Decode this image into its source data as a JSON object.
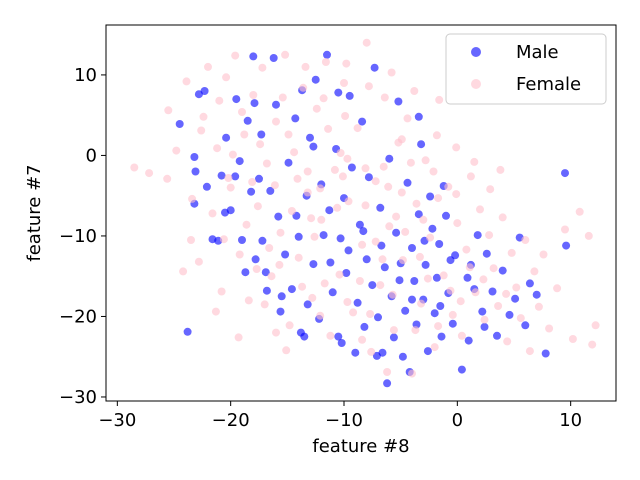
{
  "chart_data": {
    "type": "scatter",
    "title": "",
    "xlabel": "feature #8",
    "ylabel": "feature #7",
    "xlim": [
      -31,
      14
    ],
    "ylim": [
      -30.5,
      16.2
    ],
    "xticks": [
      -30,
      -20,
      -10,
      0,
      10
    ],
    "yticks": [
      -30,
      -20,
      -10,
      0,
      10
    ],
    "grid": false,
    "legend_position": "top-right",
    "series": [
      {
        "name": "Male",
        "color": "#0000ff",
        "alpha": 0.6,
        "points": [
          [
            -23.8,
            -21.9
          ],
          [
            -24.5,
            3.9
          ],
          [
            -23.2,
            -0.2
          ],
          [
            -23.1,
            -2.0
          ],
          [
            -23.2,
            -6.0
          ],
          [
            -22.8,
            7.6
          ],
          [
            -22.3,
            8.0
          ],
          [
            -22.1,
            -3.9
          ],
          [
            -21.6,
            -10.4
          ],
          [
            -21.1,
            -10.6
          ],
          [
            -20.8,
            -2.5
          ],
          [
            -20.4,
            2.2
          ],
          [
            -20.0,
            -6.8
          ],
          [
            -19.5,
            7.0
          ],
          [
            -19.2,
            -0.7
          ],
          [
            -19.0,
            -10.5
          ],
          [
            -18.7,
            -14.5
          ],
          [
            -18.5,
            4.3
          ],
          [
            -18.2,
            -4.5
          ],
          [
            -18.0,
            12.3
          ],
          [
            -17.8,
            -12.9
          ],
          [
            -17.5,
            -2.9
          ],
          [
            -17.3,
            2.6
          ],
          [
            -17.2,
            -10.6
          ],
          [
            -16.9,
            -14.5
          ],
          [
            -16.5,
            -4.4
          ],
          [
            -16.2,
            12.1
          ],
          [
            -16.0,
            6.3
          ],
          [
            -15.8,
            -7.6
          ],
          [
            -15.5,
            -17.5
          ],
          [
            -15.2,
            -12.3
          ],
          [
            -14.9,
            -0.9
          ],
          [
            -14.6,
            -16.6
          ],
          [
            -14.3,
            4.6
          ],
          [
            -14.0,
            -10.1
          ],
          [
            -13.8,
            -22.0
          ],
          [
            -13.5,
            -22.5
          ],
          [
            -13.3,
            -5.0
          ],
          [
            -13.2,
            -18.5
          ],
          [
            -13.0,
            2.2
          ],
          [
            -12.7,
            -13.5
          ],
          [
            -12.5,
            9.4
          ],
          [
            -12.2,
            -20.3
          ],
          [
            -12.0,
            -3.6
          ],
          [
            -11.8,
            -9.9
          ],
          [
            -11.5,
            12.5
          ],
          [
            -11.3,
            -6.8
          ],
          [
            -11.0,
            -17.0
          ],
          [
            -10.7,
            0.8
          ],
          [
            -10.5,
            -22.5
          ],
          [
            -10.3,
            -10.3
          ],
          [
            -10.2,
            -23.3
          ],
          [
            -10.0,
            -5.3
          ],
          [
            -9.8,
            -14.6
          ],
          [
            -9.5,
            7.4
          ],
          [
            -9.3,
            -1.5
          ],
          [
            -9.0,
            -24.5
          ],
          [
            -8.8,
            -18.3
          ],
          [
            -8.6,
            -8.6
          ],
          [
            -8.4,
            4.2
          ],
          [
            -8.2,
            -21.3
          ],
          [
            -8.0,
            -12.9
          ],
          [
            -7.8,
            -2.7
          ],
          [
            -7.5,
            -16.1
          ],
          [
            -7.3,
            10.9
          ],
          [
            -7.1,
            -24.9
          ],
          [
            -7.0,
            -20.1
          ],
          [
            -6.8,
            -6.5
          ],
          [
            -6.6,
            -24.5
          ],
          [
            -6.4,
            -13.9
          ],
          [
            -6.2,
            -28.3
          ],
          [
            -6.0,
            -0.4
          ],
          [
            -5.8,
            -17.5
          ],
          [
            -5.6,
            -22.6
          ],
          [
            -5.4,
            -9.6
          ],
          [
            -5.2,
            6.7
          ],
          [
            -5.0,
            -13.4
          ],
          [
            -4.8,
            -25.0
          ],
          [
            -4.6,
            -19.3
          ],
          [
            -4.4,
            -3.4
          ],
          [
            -4.2,
            -26.9
          ],
          [
            -4.0,
            -11.5
          ],
          [
            -3.8,
            -15.6
          ],
          [
            -3.6,
            -21.0
          ],
          [
            -3.4,
            -7.3
          ],
          [
            -3.2,
            1.4
          ],
          [
            -3.0,
            -17.9
          ],
          [
            -2.8,
            -13.6
          ],
          [
            -2.6,
            -24.3
          ],
          [
            -2.4,
            -5.1
          ],
          [
            -2.2,
            -9.1
          ],
          [
            -2.0,
            -19.6
          ],
          [
            -1.8,
            -15.2
          ],
          [
            -1.6,
            -11.0
          ],
          [
            -1.4,
            -22.5
          ],
          [
            -1.2,
            -3.8
          ],
          [
            -1.0,
            -7.5
          ],
          [
            -0.8,
            -17.1
          ],
          [
            -0.6,
            -13.0
          ],
          [
            -0.4,
            -20.9
          ],
          [
            0.4,
            -26.6
          ],
          [
            1.0,
            -23.0
          ],
          [
            1.2,
            -13.6
          ],
          [
            1.5,
            -16.6
          ],
          [
            1.8,
            -9.9
          ],
          [
            2.2,
            -19.4
          ],
          [
            2.6,
            -12.2
          ],
          [
            3.1,
            -16.9
          ],
          [
            3.5,
            -22.4
          ],
          [
            4.0,
            -14.3
          ],
          [
            4.6,
            -19.8
          ],
          [
            5.1,
            -17.8
          ],
          [
            5.5,
            -10.2
          ],
          [
            6.0,
            -21.1
          ],
          [
            6.4,
            -15.9
          ],
          [
            7.0,
            -17.3
          ],
          [
            7.8,
            -24.6
          ],
          [
            9.5,
            -2.2
          ],
          [
            9.6,
            -11.2
          ],
          [
            -10.5,
            7.8
          ],
          [
            -13.7,
            8.1
          ],
          [
            -14.2,
            -7.5
          ],
          [
            -17.9,
            6.5
          ],
          [
            -19.6,
            -2.6
          ],
          [
            -20.5,
            -7.1
          ],
          [
            -12.7,
            1.1
          ],
          [
            -11.2,
            -13.3
          ],
          [
            -9.6,
            -11.8
          ],
          [
            -8.3,
            -9.4
          ],
          [
            -6.7,
            -11.2
          ],
          [
            -5.1,
            -15.5
          ],
          [
            -4.0,
            -17.9
          ],
          [
            -2.9,
            -10.6
          ],
          [
            -1.5,
            -18.7
          ],
          [
            -0.2,
            -12.4
          ],
          [
            0.9,
            -15.2
          ],
          [
            2.4,
            -21.3
          ],
          [
            -15.6,
            -19.4
          ],
          [
            -16.8,
            -16.8
          ],
          [
            -3.4,
            4.8
          ]
        ]
      },
      {
        "name": "Female",
        "color": "#ffc0cb",
        "alpha": 0.6,
        "points": [
          [
            -28.5,
            -1.5
          ],
          [
            -27.2,
            -2.2
          ],
          [
            -25.6,
            -2.9
          ],
          [
            -25.5,
            5.6
          ],
          [
            -24.8,
            0.6
          ],
          [
            -24.2,
            -14.4
          ],
          [
            -23.9,
            9.2
          ],
          [
            -23.5,
            -10.5
          ],
          [
            -22.8,
            -13.2
          ],
          [
            -22.4,
            4.8
          ],
          [
            -22.0,
            11.0
          ],
          [
            -21.6,
            -7.2
          ],
          [
            -21.2,
            0.9
          ],
          [
            -20.8,
            -16.9
          ],
          [
            -20.4,
            9.7
          ],
          [
            -20.0,
            -4.0
          ],
          [
            -19.6,
            12.4
          ],
          [
            -19.2,
            -12.3
          ],
          [
            -18.8,
            2.6
          ],
          [
            -18.4,
            -18.0
          ],
          [
            -18.0,
            7.5
          ],
          [
            -17.6,
            -6.3
          ],
          [
            -17.2,
            10.9
          ],
          [
            -16.8,
            -1.0
          ],
          [
            -16.4,
            -15.0
          ],
          [
            -16.0,
            4.2
          ],
          [
            -15.6,
            -9.6
          ],
          [
            -15.2,
            12.5
          ],
          [
            -14.8,
            -21.1
          ],
          [
            -14.4,
            0.4
          ],
          [
            -14.0,
            -12.7
          ],
          [
            -13.6,
            8.4
          ],
          [
            -13.2,
            -4.6
          ],
          [
            -12.8,
            -17.7
          ],
          [
            -12.4,
            5.8
          ],
          [
            -12.0,
            -8.0
          ],
          [
            -11.6,
            11.6
          ],
          [
            -11.2,
            -22.4
          ],
          [
            -10.8,
            -1.8
          ],
          [
            -10.4,
            -14.8
          ],
          [
            -10.0,
            9.0
          ],
          [
            -9.6,
            -5.7
          ],
          [
            -9.2,
            -19.5
          ],
          [
            -8.8,
            3.4
          ],
          [
            -8.4,
            -11.1
          ],
          [
            -8.0,
            14.0
          ],
          [
            -7.6,
            -24.4
          ],
          [
            -7.2,
            -3.2
          ],
          [
            -6.8,
            -16.1
          ],
          [
            -6.4,
            7.2
          ],
          [
            -6.0,
            -8.8
          ],
          [
            -5.6,
            -21.7
          ],
          [
            -5.2,
            1.6
          ],
          [
            -4.8,
            -13.0
          ],
          [
            -4.4,
            4.6
          ],
          [
            -4.0,
            -27.1
          ],
          [
            -3.6,
            -6.0
          ],
          [
            -3.2,
            -18.4
          ],
          [
            -2.8,
            -0.6
          ],
          [
            -2.4,
            -10.2
          ],
          [
            -2.0,
            -23.8
          ],
          [
            -1.6,
            6.9
          ],
          [
            -1.2,
            -14.9
          ],
          [
            -0.8,
            -3.9
          ],
          [
            -0.4,
            -19.8
          ],
          [
            0.0,
            -8.4
          ],
          [
            0.4,
            -22.4
          ],
          [
            0.8,
            -11.7
          ],
          [
            1.2,
            -2.6
          ],
          [
            1.6,
            -17.0
          ],
          [
            2.0,
            -6.7
          ],
          [
            2.4,
            -20.4
          ],
          [
            2.8,
            -9.9
          ],
          [
            3.2,
            -14.0
          ],
          [
            3.6,
            -18.7
          ],
          [
            4.0,
            -7.7
          ],
          [
            4.4,
            -23.1
          ],
          [
            4.8,
            -12.1
          ],
          [
            5.2,
            -16.4
          ],
          [
            5.6,
            -20.2
          ],
          [
            6.0,
            -10.5
          ],
          [
            6.4,
            -24.3
          ],
          [
            6.8,
            -14.4
          ],
          [
            7.2,
            -18.8
          ],
          [
            7.6,
            -12.3
          ],
          [
            8.1,
            -21.5
          ],
          [
            8.8,
            -16.5
          ],
          [
            9.5,
            -9.2
          ],
          [
            10.2,
            -22.8
          ],
          [
            10.8,
            -7.0
          ],
          [
            11.6,
            -10.0
          ],
          [
            12.2,
            -21.1
          ],
          [
            11.9,
            -23.5
          ],
          [
            -21.3,
            -19.4
          ],
          [
            -19.3,
            -22.6
          ],
          [
            -17.0,
            -18.5
          ],
          [
            -15.1,
            -24.2
          ],
          [
            -13.2,
            -2.0
          ],
          [
            -11.4,
            3.3
          ],
          [
            -9.7,
            -0.4
          ],
          [
            -8.1,
            -6.2
          ],
          [
            -6.5,
            -1.4
          ],
          [
            -4.9,
            -4.6
          ],
          [
            -3.3,
            -12.6
          ],
          [
            -1.7,
            -5.3
          ],
          [
            -0.1,
            1.0
          ],
          [
            1.5,
            -0.8
          ],
          [
            2.9,
            -4.2
          ],
          [
            3.8,
            -1.8
          ],
          [
            -20.6,
            -10.4
          ],
          [
            -18.6,
            -8.6
          ],
          [
            -16.6,
            -11.5
          ],
          [
            -14.6,
            -6.9
          ],
          [
            -12.6,
            -10.1
          ],
          [
            -10.6,
            -6.5
          ],
          [
            -8.6,
            -15.6
          ],
          [
            -6.6,
            -12.9
          ],
          [
            -4.6,
            -9.5
          ],
          [
            -2.6,
            -15.3
          ],
          [
            -0.6,
            -16.8
          ],
          [
            -22.6,
            3.1
          ],
          [
            -21.0,
            6.8
          ],
          [
            -19.0,
            5.4
          ],
          [
            -17.4,
            1.4
          ],
          [
            -15.4,
            7.2
          ],
          [
            -13.4,
            11.0
          ],
          [
            -11.8,
            7.1
          ],
          [
            -9.8,
            11.4
          ],
          [
            -7.8,
            8.6
          ],
          [
            -5.8,
            10.3
          ],
          [
            -3.8,
            8.0
          ],
          [
            -1.8,
            2.5
          ],
          [
            -23.4,
            -5.4
          ],
          [
            -20.2,
            -2.8
          ],
          [
            -18.1,
            -3.3
          ],
          [
            -16.1,
            -3.7
          ],
          [
            -14.1,
            -2.9
          ],
          [
            -12.1,
            -4.1
          ],
          [
            -10.1,
            -2.6
          ],
          [
            -8.1,
            -1.6
          ],
          [
            -6.1,
            -3.9
          ],
          [
            -4.1,
            -0.9
          ],
          [
            -2.1,
            -2.0
          ],
          [
            -0.1,
            -4.8
          ],
          [
            -17.7,
            -14.1
          ],
          [
            -15.7,
            -13.6
          ],
          [
            -13.7,
            -16.3
          ],
          [
            -11.7,
            -15.9
          ],
          [
            -9.7,
            -18.2
          ],
          [
            -7.7,
            -19.7
          ],
          [
            -5.7,
            -17.3
          ],
          [
            -3.7,
            -21.7
          ],
          [
            -1.7,
            -21.2
          ],
          [
            0.3,
            -18.1
          ],
          [
            2.3,
            -15.4
          ],
          [
            4.3,
            -17.2
          ],
          [
            -19.8,
            0.1
          ],
          [
            -14.9,
            2.6
          ],
          [
            -9.9,
            4.9
          ],
          [
            -4.9,
            2.0
          ],
          [
            -10.3,
            0.3
          ],
          [
            -12.9,
            -7.8
          ],
          [
            -7.2,
            -10.7
          ],
          [
            -5.4,
            -7.6
          ],
          [
            -3.0,
            -8.0
          ],
          [
            1.1,
            -13.9
          ],
          [
            -16.0,
            -22.0
          ],
          [
            -12.1,
            -19.9
          ],
          [
            -8.4,
            -22.9
          ],
          [
            -6.2,
            -26.9
          ]
        ]
      }
    ]
  }
}
